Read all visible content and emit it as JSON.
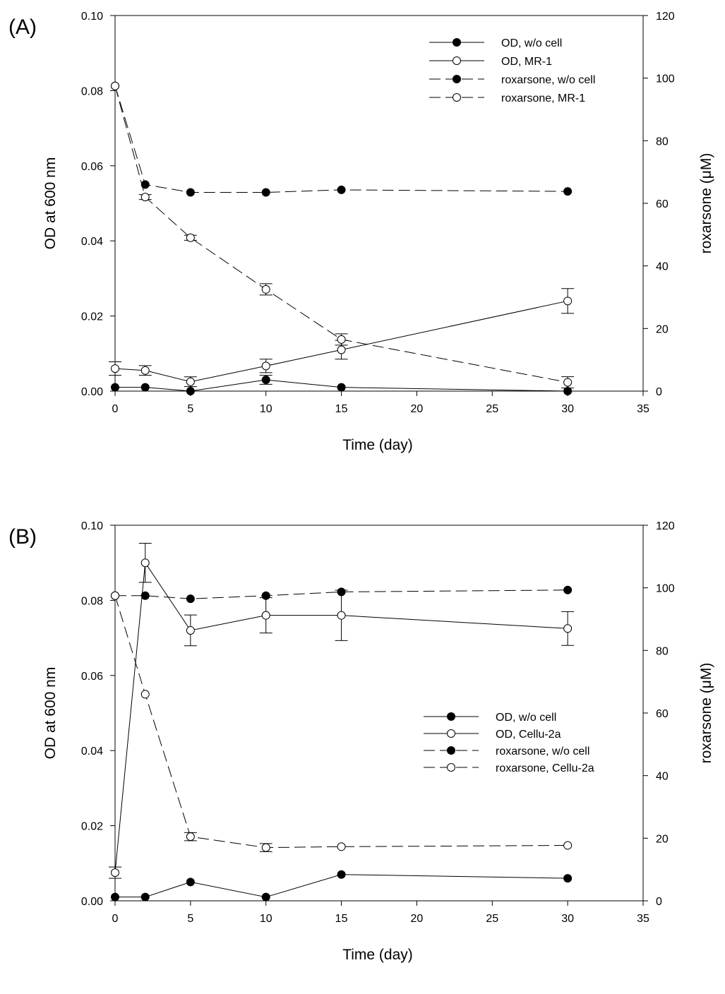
{
  "chart_data": [
    {
      "panel_label": "(A)",
      "type": "line",
      "xlabel": "Time (day)",
      "ylabel_left": "OD at 600 nm",
      "ylabel_right": "roxarsone (μM)",
      "xlim": [
        0,
        35
      ],
      "ylim_left": [
        0,
        0.1
      ],
      "ylim_right": [
        0,
        120
      ],
      "x_ticks": [
        "0",
        "5",
        "10",
        "15",
        "20",
        "25",
        "30",
        "35"
      ],
      "y_left_ticks": [
        "0.00",
        "0.02",
        "0.04",
        "0.06",
        "0.08",
        "0.10"
      ],
      "y_right_ticks": [
        "0",
        "20",
        "40",
        "60",
        "80",
        "100",
        "120"
      ],
      "legend_position": "top-right",
      "series": [
        {
          "name": "OD, w/o cell",
          "axis": "left",
          "marker": "filled",
          "line": "solid",
          "x": [
            0,
            2,
            5,
            10,
            15,
            30
          ],
          "y": [
            0.001,
            0.001,
            0.0,
            0.003,
            0.001,
            0.0
          ],
          "err": [
            0,
            0,
            0,
            0.0012,
            0,
            0
          ]
        },
        {
          "name": "OD, MR-1",
          "axis": "left",
          "marker": "open",
          "line": "solid",
          "x": [
            0,
            2,
            5,
            10,
            15,
            30
          ],
          "y": [
            0.006,
            0.0055,
            0.0025,
            0.0067,
            0.011,
            0.024
          ],
          "err": [
            0.0018,
            0.0013,
            0.0013,
            0.0018,
            0.0025,
            0.0033
          ]
        },
        {
          "name": "roxarsone, w/o cell",
          "axis": "right",
          "marker": "filled",
          "line": "dashed",
          "x": [
            0,
            2,
            5,
            10,
            15,
            30
          ],
          "y": [
            97.5,
            66,
            63.5,
            63.5,
            64.3,
            63.8
          ],
          "err": [
            0,
            0,
            0,
            0,
            0,
            0
          ]
        },
        {
          "name": "roxarsone, MR-1",
          "axis": "right",
          "marker": "open",
          "line": "dashed",
          "x": [
            0,
            2,
            5,
            10,
            15,
            30
          ],
          "y": [
            97.5,
            62,
            49,
            32.5,
            16.5,
            2.8
          ],
          "err": [
            0,
            0.8,
            0.8,
            1.8,
            1.8,
            1.8
          ]
        }
      ]
    },
    {
      "panel_label": "(B)",
      "type": "line",
      "xlabel": "Time (day)",
      "ylabel_left": "OD at 600 nm",
      "ylabel_right": "roxarsone (μM)",
      "xlim": [
        0,
        35
      ],
      "ylim_left": [
        0,
        0.1
      ],
      "ylim_right": [
        0,
        120
      ],
      "x_ticks": [
        "0",
        "5",
        "10",
        "15",
        "20",
        "25",
        "30",
        "35"
      ],
      "y_left_ticks": [
        "0.00",
        "0.02",
        "0.04",
        "0.06",
        "0.08",
        "0.10"
      ],
      "y_right_ticks": [
        "0",
        "20",
        "40",
        "60",
        "80",
        "100",
        "120"
      ],
      "legend_position": "center-right",
      "series": [
        {
          "name": "OD, w/o cell",
          "axis": "left",
          "marker": "filled",
          "line": "solid",
          "x": [
            0,
            2,
            5,
            10,
            15,
            30
          ],
          "y": [
            0.001,
            0.001,
            0.005,
            0.001,
            0.007,
            0.006
          ],
          "err": [
            0,
            0,
            0,
            0,
            0,
            0
          ]
        },
        {
          "name": "OD, Cellu-2a",
          "axis": "left",
          "marker": "open",
          "line": "solid",
          "x": [
            0,
            2,
            5,
            10,
            15,
            30
          ],
          "y": [
            0.0075,
            0.09,
            0.072,
            0.076,
            0.076,
            0.0725
          ],
          "err": [
            0.0015,
            0.0052,
            0.0041,
            0.0047,
            0.0067,
            0.0045
          ]
        },
        {
          "name": "roxarsone, w/o cell",
          "axis": "right",
          "marker": "filled",
          "line": "dashed",
          "x": [
            0,
            2,
            5,
            10,
            15,
            30
          ],
          "y": [
            97.5,
            97.5,
            96.5,
            97.5,
            98.7,
            99.3
          ],
          "err": [
            0,
            0,
            0,
            0,
            0,
            0
          ]
        },
        {
          "name": "roxarsone, Cellu-2a",
          "axis": "right",
          "marker": "open",
          "line": "dashed",
          "x": [
            0,
            2,
            5,
            10,
            15,
            30
          ],
          "y": [
            97.5,
            66,
            20.5,
            17,
            17.3,
            17.7
          ],
          "err": [
            0,
            0,
            1.3,
            1.3,
            0,
            0
          ]
        }
      ]
    }
  ]
}
